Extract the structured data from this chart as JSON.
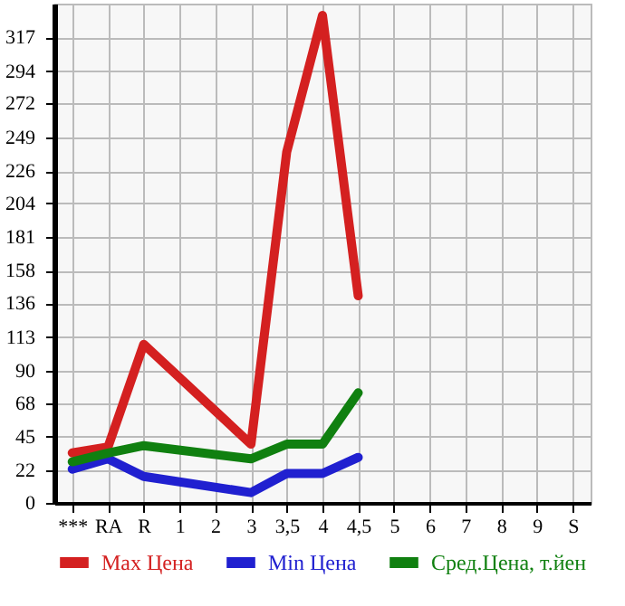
{
  "chart_data": {
    "type": "line",
    "categories": [
      "***",
      "RA",
      "R",
      "1",
      "2",
      "3",
      "3,5",
      "4",
      "4,5",
      "5",
      "6",
      "7",
      "8",
      "9",
      "S"
    ],
    "series": [
      {
        "name": "Max Цена",
        "color": "#d42020",
        "values": [
          34,
          38,
          108,
          null,
          null,
          40,
          239,
          332,
          141,
          null,
          null,
          null,
          null,
          null,
          null
        ]
      },
      {
        "name": "Min Цена",
        "color": "#2020d0",
        "values": [
          23,
          30,
          18,
          null,
          null,
          7,
          20,
          20,
          31,
          null,
          null,
          null,
          null,
          null,
          null
        ]
      },
      {
        "name": "Сред.Цена, т.йен",
        "color": "#108010",
        "values": [
          28,
          34,
          39,
          null,
          null,
          30,
          40,
          40,
          75,
          null,
          null,
          null,
          null,
          null,
          null
        ]
      }
    ],
    "ylim": [
      0,
      340
    ],
    "yticks": [
      0,
      22,
      45,
      68,
      90,
      113,
      136,
      158,
      181,
      204,
      226,
      249,
      272,
      294,
      317
    ],
    "grid": true,
    "legend": "bottom",
    "marker": "none",
    "line_style": "solid"
  }
}
